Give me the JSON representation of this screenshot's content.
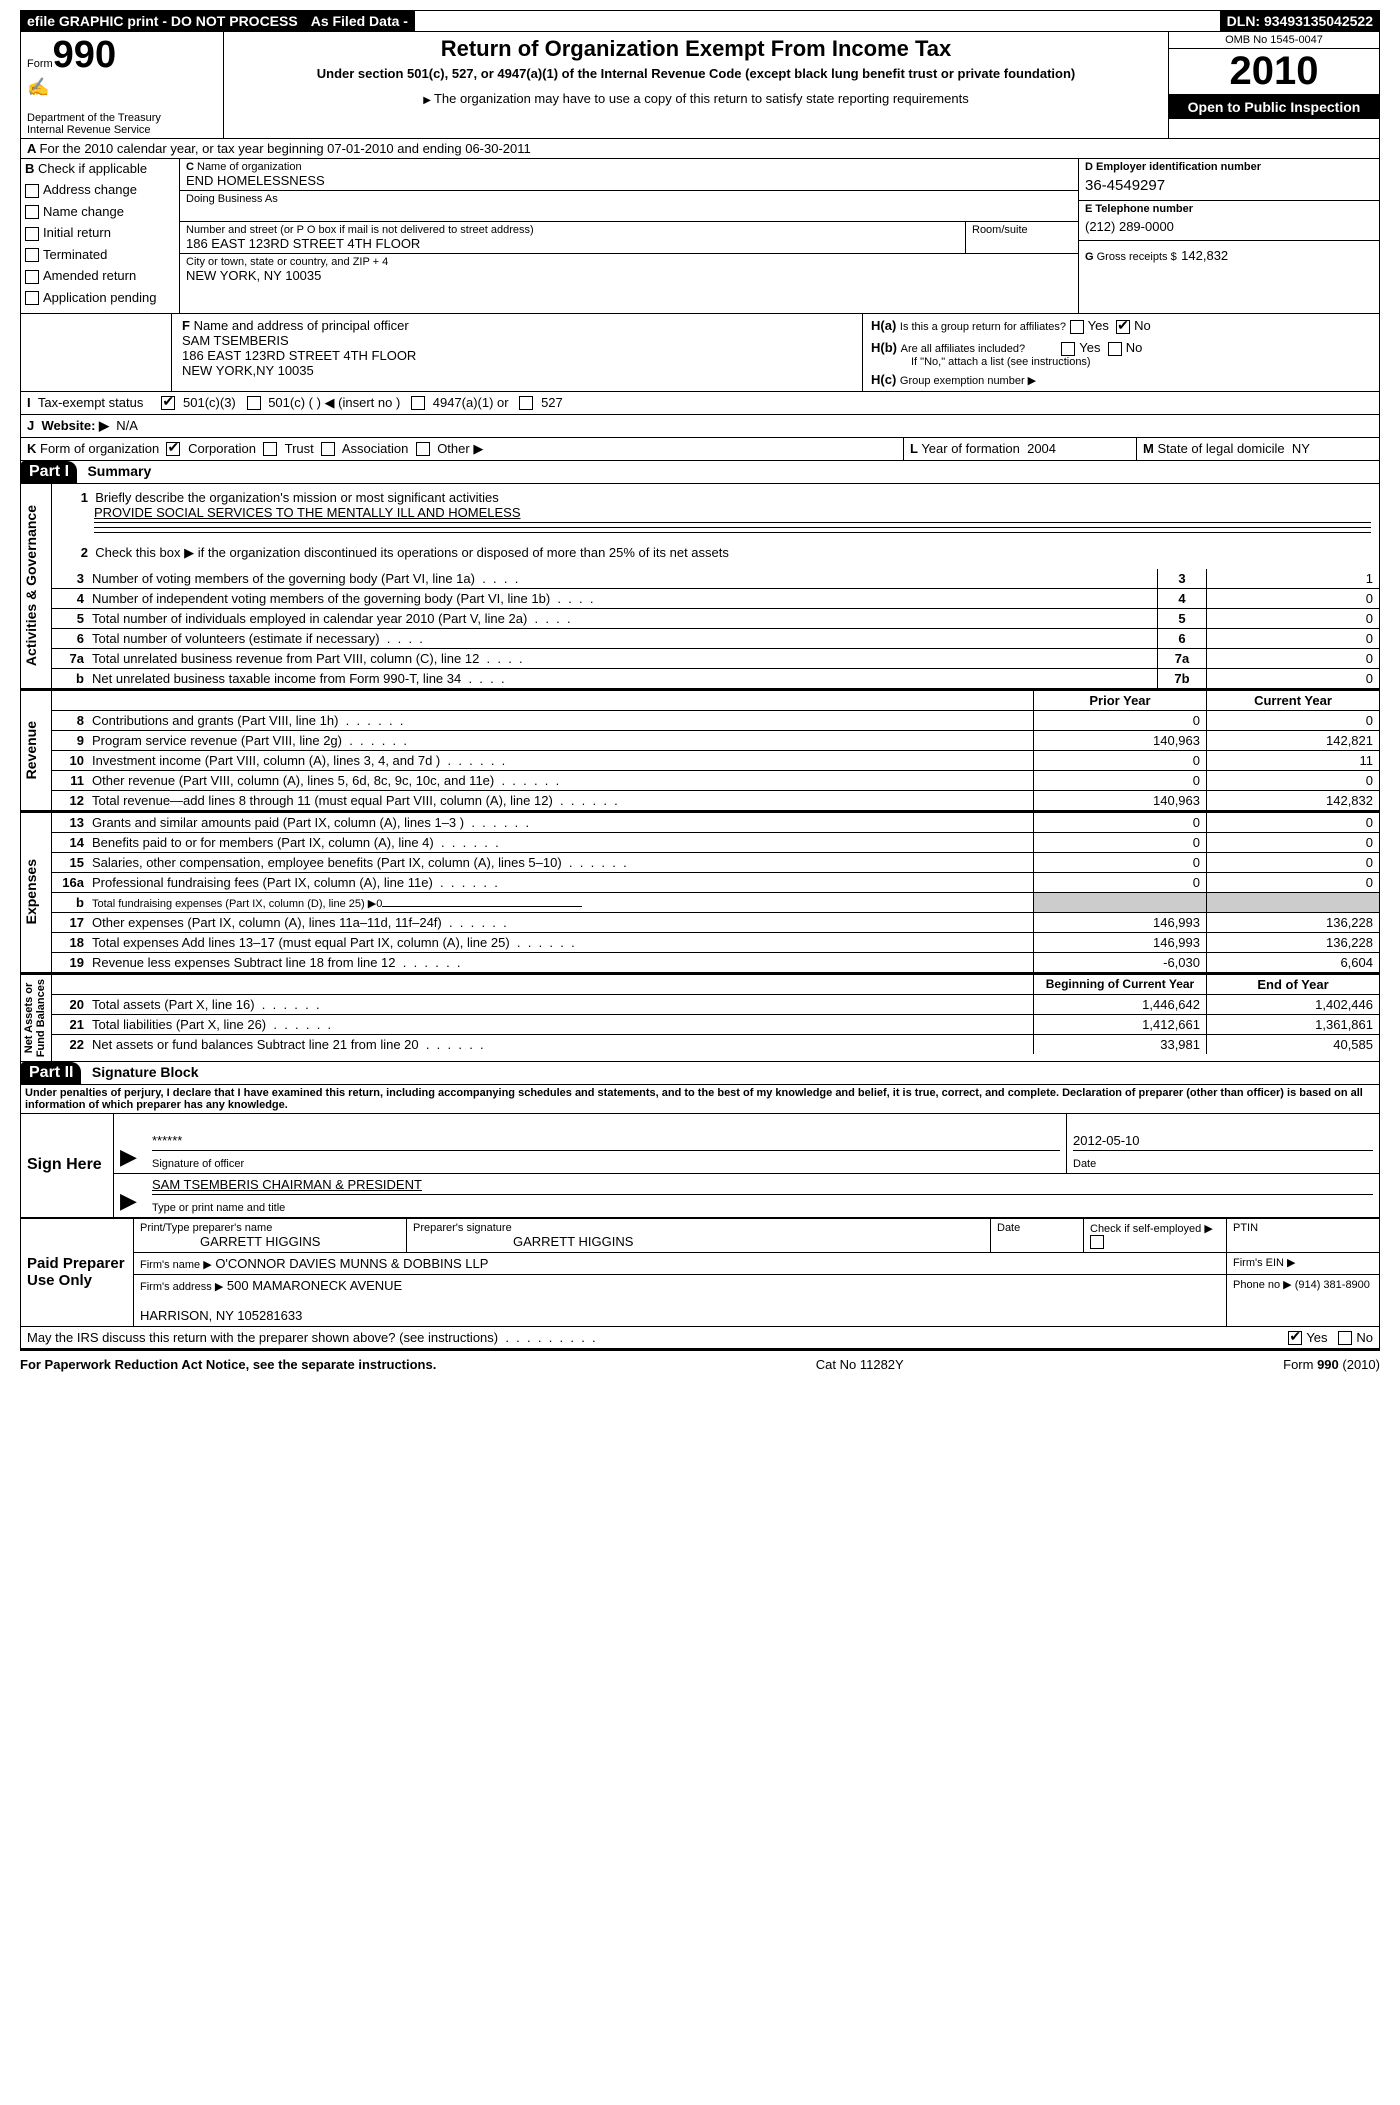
{
  "top": {
    "efile": "efile GRAPHIC print - DO NOT PROCESS",
    "asfiled": "As Filed Data -",
    "dln_label": "DLN:",
    "dln": "93493135042522"
  },
  "header": {
    "form_word": "Form",
    "form_num": "990",
    "dept": "Department of the Treasury\nInternal Revenue Service",
    "title": "Return of Organization Exempt From Income Tax",
    "sub1": "Under section 501(c), 527, or 4947(a)(1) of the Internal Revenue Code (except black lung benefit trust or private foundation)",
    "sub2": "The organization may have to use a copy of this return to satisfy state reporting requirements",
    "omb": "OMB No 1545-0047",
    "year": "2010",
    "open": "Open to Public Inspection"
  },
  "A": {
    "text": "For the 2010 calendar year, or tax year beginning 07-01-2010    and ending 06-30-2011"
  },
  "B": {
    "label": "Check if applicable",
    "opts": [
      "Address change",
      "Name change",
      "Initial return",
      "Terminated",
      "Amended return",
      "Application pending"
    ]
  },
  "C": {
    "name_label": "Name of organization",
    "name": "END HOMELESSNESS",
    "dba_label": "Doing Business As",
    "street_label": "Number and street (or P O  box if mail is not delivered to street address)",
    "street": "186 EAST 123RD STREET 4TH FLOOR",
    "room_label": "Room/suite",
    "city_label": "City or town, state or country, and ZIP + 4",
    "city": "NEW YORK, NY  10035"
  },
  "D": {
    "label": "Employer identification number",
    "val": "36-4549297"
  },
  "E": {
    "label": "Telephone number",
    "val": "(212) 289-0000"
  },
  "G": {
    "label": "Gross receipts $",
    "val": "142,832"
  },
  "F": {
    "label": "Name and address of principal officer",
    "name": "SAM TSEMBERIS",
    "addr1": "186 EAST 123RD STREET 4TH FLOOR",
    "addr2": "NEW YORK,NY  10035"
  },
  "H": {
    "a": "Is this a group return for affiliates?",
    "b": "Are all affiliates included?",
    "b_note": "If \"No,\" attach a list  (see instructions)",
    "c": "Group exemption number ▶",
    "yes": "Yes",
    "no": "No"
  },
  "I": {
    "label": "Tax-exempt status",
    "opts": [
      "501(c)(3)",
      "501(c) (  ) ◀ (insert no )",
      "4947(a)(1) or",
      "527"
    ]
  },
  "J": {
    "label": "Website: ▶",
    "val": "N/A"
  },
  "K": {
    "label": "Form of organization",
    "opts": [
      "Corporation",
      "Trust",
      "Association",
      "Other ▶"
    ]
  },
  "L": {
    "label": "Year of formation",
    "val": "2004"
  },
  "M": {
    "label": "State of legal domicile",
    "val": "NY"
  },
  "part1": {
    "code": "Part I",
    "title": "Summary"
  },
  "summary": {
    "line1_label": "Briefly describe the organization's mission or most significant activities",
    "line1_val": "PROVIDE SOCIAL SERVICES TO THE MENTALLY ILL AND HOMELESS",
    "line2": "Check this box ▶       if the organization discontinued its operations or disposed of more than 25% of its net assets",
    "lines_ag": [
      {
        "n": "3",
        "d": "Number of voting members of the governing body (Part VI, line 1a)",
        "k": "3",
        "v": "1"
      },
      {
        "n": "4",
        "d": "Number of independent voting members of the governing body (Part VI, line 1b)",
        "k": "4",
        "v": "0"
      },
      {
        "n": "5",
        "d": "Total number of individuals employed in calendar year 2010 (Part V, line 2a)",
        "k": "5",
        "v": "0"
      },
      {
        "n": "6",
        "d": "Total number of volunteers (estimate if necessary)",
        "k": "6",
        "v": "0"
      },
      {
        "n": "7a",
        "d": "Total unrelated business revenue from Part VIII, column (C), line 12",
        "k": "7a",
        "v": "0"
      },
      {
        "n": "b",
        "d": "Net unrelated business taxable income from Form 990-T, line 34",
        "k": "7b",
        "v": "0"
      }
    ],
    "col_prior": "Prior Year",
    "col_current": "Current Year",
    "revenue": [
      {
        "n": "8",
        "d": "Contributions and grants (Part VIII, line 1h)",
        "p": "0",
        "c": "0"
      },
      {
        "n": "9",
        "d": "Program service revenue (Part VIII, line 2g)",
        "p": "140,963",
        "c": "142,821"
      },
      {
        "n": "10",
        "d": "Investment income (Part VIII, column (A), lines 3, 4, and 7d )",
        "p": "0",
        "c": "11"
      },
      {
        "n": "11",
        "d": "Other revenue (Part VIII, column (A), lines 5, 6d, 8c, 9c, 10c, and 11e)",
        "p": "0",
        "c": "0"
      },
      {
        "n": "12",
        "d": "Total revenue—add lines 8 through 11 (must equal Part VIII, column (A), line 12)",
        "p": "140,963",
        "c": "142,832"
      }
    ],
    "expenses": [
      {
        "n": "13",
        "d": "Grants and similar amounts paid (Part IX, column (A), lines 1–3 )",
        "p": "0",
        "c": "0"
      },
      {
        "n": "14",
        "d": "Benefits paid to or for members (Part IX, column (A), line 4)",
        "p": "0",
        "c": "0"
      },
      {
        "n": "15",
        "d": "Salaries, other compensation, employee benefits (Part IX, column (A), lines 5–10)",
        "p": "0",
        "c": "0"
      },
      {
        "n": "16a",
        "d": "Professional fundraising fees (Part IX, column (A), line 11e)",
        "p": "0",
        "c": "0"
      },
      {
        "n": "b",
        "d": "Total fundraising expenses (Part IX, column (D), line 25) ▶0",
        "p": "",
        "c": "",
        "grey": true
      },
      {
        "n": "17",
        "d": "Other expenses (Part IX, column (A), lines 11a–11d, 11f–24f)",
        "p": "146,993",
        "c": "136,228"
      },
      {
        "n": "18",
        "d": "Total expenses  Add lines 13–17 (must equal Part IX, column (A), line 25)",
        "p": "146,993",
        "c": "136,228"
      },
      {
        "n": "19",
        "d": "Revenue less expenses  Subtract line 18 from line 12",
        "p": "-6,030",
        "c": "6,604"
      }
    ],
    "col_boy": "Beginning of Current Year",
    "col_eoy": "End of Year",
    "netassets": [
      {
        "n": "20",
        "d": "Total assets (Part X, line 16)",
        "p": "1,446,642",
        "c": "1,402,446"
      },
      {
        "n": "21",
        "d": "Total liabilities (Part X, line 26)",
        "p": "1,412,661",
        "c": "1,361,861"
      },
      {
        "n": "22",
        "d": "Net assets or fund balances  Subtract line 21 from line 20",
        "p": "33,981",
        "c": "40,585"
      }
    ],
    "vlabels": {
      "ag": "Activities & Governance",
      "rev": "Revenue",
      "exp": "Expenses",
      "na": "Net Assets or\nFund Balances"
    }
  },
  "part2": {
    "code": "Part II",
    "title": "Signature Block"
  },
  "perjury": "Under penalties of perjury, I declare that I have examined this return, including accompanying schedules and statements, and to the best of my knowledge and belief, it is true, correct, and complete. Declaration of preparer (other than officer) is based on all information of which preparer has any knowledge.",
  "sign": {
    "here": "Sign Here",
    "sig_mask": "******",
    "sig_label": "Signature of officer",
    "date": "2012-05-10",
    "date_label": "Date",
    "name": "SAM TSEMBERIS CHAIRMAN & PRESIDENT",
    "name_label": "Type or print name and title"
  },
  "preparer": {
    "here": "Paid Preparer Use Only",
    "print_label": "Print/Type preparer's name",
    "print_name": "GARRETT HIGGINS",
    "sig_label": "Preparer's signature",
    "sig_name": "GARRETT HIGGINS",
    "date_label": "Date",
    "self_label": "Check if self-employed ▶",
    "ptin_label": "PTIN",
    "firm_name_label": "Firm's name  ▶",
    "firm_name": "O'CONNOR DAVIES MUNNS & DOBBINS LLP",
    "firm_ein_label": "Firm's EIN  ▶",
    "firm_addr_label": "Firm's address  ▶",
    "firm_addr": "500 MAMARONECK AVENUE\n\nHARRISON, NY  105281633",
    "phone_label": "Phone no  ▶",
    "phone": "(914) 381-8900"
  },
  "discuss": "May the IRS discuss this return with the preparer shown above? (see instructions)",
  "footer": {
    "left": "For Paperwork Reduction Act Notice, see the separate instructions.",
    "mid": "Cat No  11282Y",
    "right": "Form 990 (2010)"
  }
}
